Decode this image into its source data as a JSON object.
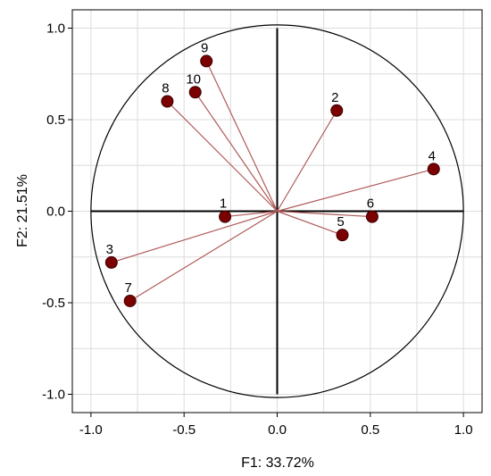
{
  "chart_data": {
    "type": "scatter",
    "xlabel": "F1: 33.72%",
    "ylabel": "F2: 21.51%",
    "xlim": [
      -1.1,
      1.1
    ],
    "ylim": [
      -1.1,
      1.1
    ],
    "x_ticks": [
      "-1.0",
      "-0.5",
      "0.0",
      "0.5",
      "1.0"
    ],
    "y_ticks": [
      "1.0",
      "0.5",
      "0.0",
      "-0.5",
      "-1.0"
    ],
    "grid": true,
    "unit_circle": true,
    "colors": {
      "point": "#7b0000",
      "vector": "#b05a5a",
      "grid": "#dcdcdc"
    },
    "points": [
      {
        "label": "1",
        "x": -0.28,
        "y": -0.03
      },
      {
        "label": "2",
        "x": 0.32,
        "y": 0.55
      },
      {
        "label": "3",
        "x": -0.89,
        "y": -0.28
      },
      {
        "label": "4",
        "x": 0.84,
        "y": 0.23
      },
      {
        "label": "5",
        "x": 0.35,
        "y": -0.13
      },
      {
        "label": "6",
        "x": 0.51,
        "y": -0.03
      },
      {
        "label": "7",
        "x": -0.79,
        "y": -0.49
      },
      {
        "label": "8",
        "x": -0.59,
        "y": 0.6
      },
      {
        "label": "9",
        "x": -0.38,
        "y": 0.82
      },
      {
        "label": "10",
        "x": -0.44,
        "y": 0.65
      }
    ]
  }
}
